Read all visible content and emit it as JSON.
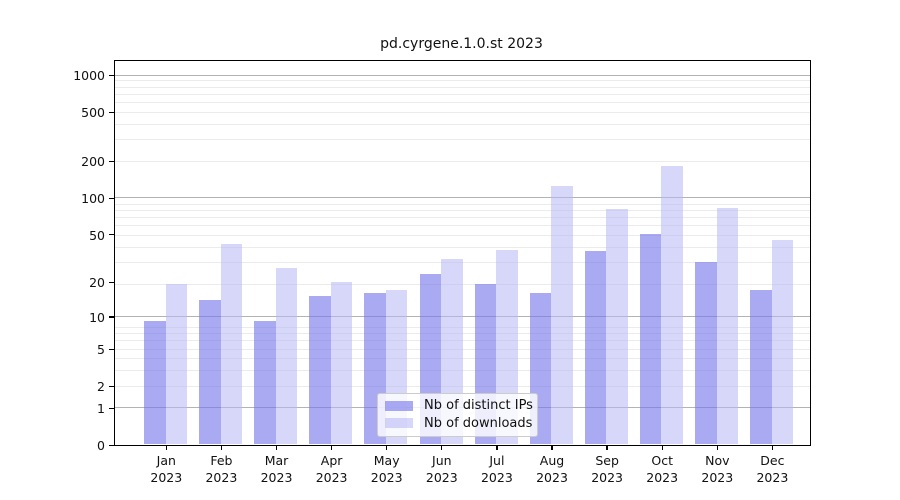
{
  "chart_data": {
    "type": "bar",
    "title": "pd.cyrgene.1.0.st 2023",
    "categories": [
      "Jan",
      "Feb",
      "Mar",
      "Apr",
      "May",
      "Jun",
      "Jul",
      "Aug",
      "Sep",
      "Oct",
      "Nov",
      "Dec"
    ],
    "category_year": "2023",
    "series": [
      {
        "name": "Nb of distinct IPs",
        "values": [
          9,
          14,
          9,
          15,
          16,
          23,
          19,
          16,
          36,
          50,
          29,
          17
        ],
        "color": "rgba(118,118,235,0.62)"
      },
      {
        "name": "Nb of downloads",
        "values": [
          19,
          41,
          26,
          20,
          17,
          31,
          37,
          125,
          80,
          180,
          82,
          45
        ],
        "color": "rgba(183,183,246,0.55)"
      }
    ],
    "yscale": "log1p",
    "ylim": [
      0,
      1290
    ],
    "yticks": [
      1000,
      500,
      200,
      100,
      50,
      20,
      10,
      5,
      2,
      1,
      0
    ],
    "major_gridlines": [
      1,
      10,
      100,
      1000
    ],
    "grid": true,
    "legend_position": "lower-center",
    "xlabel": "",
    "ylabel": ""
  },
  "style_colors": {
    "axis": "#000000",
    "major_grid": "#b3b3b3",
    "minor_grid": "#ebebeb",
    "text": "#111111",
    "legend_border": "#cccccc"
  }
}
